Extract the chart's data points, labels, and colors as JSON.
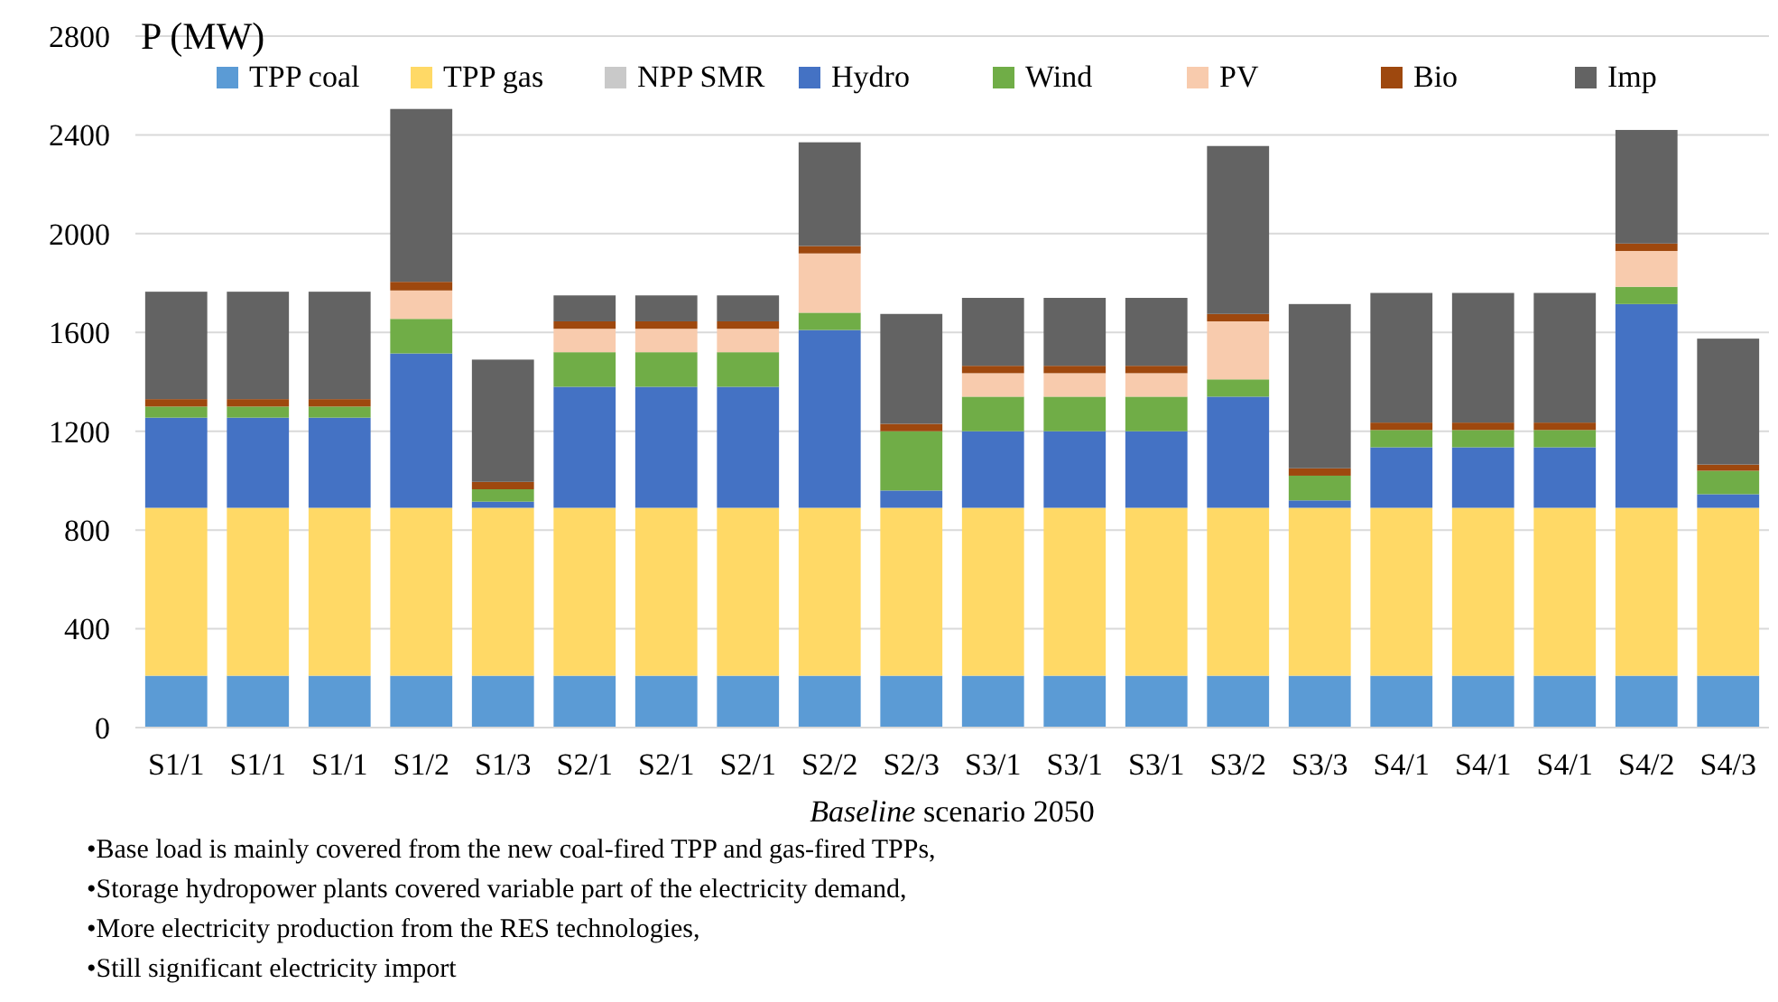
{
  "chart_data": {
    "type": "bar",
    "stacked": true,
    "ylabel": "P (MW)",
    "xlabel": "Baseline scenario 2050",
    "categories": [
      "S1/1",
      "S1/1",
      "S1/1",
      "S1/2",
      "S1/3",
      "S2/1",
      "S2/1",
      "S2/1",
      "S2/2",
      "S2/3",
      "S3/1",
      "S3/1",
      "S3/1",
      "S3/2",
      "S3/3",
      "S4/1",
      "S4/1",
      "S4/1",
      "S4/2",
      "S4/3"
    ],
    "series": [
      {
        "name": "TPP coal",
        "color": "#5b9bd5",
        "values": [
          210,
          210,
          210,
          210,
          210,
          210,
          210,
          210,
          210,
          210,
          210,
          210,
          210,
          210,
          210,
          210,
          210,
          210,
          210,
          210
        ]
      },
      {
        "name": "TPP gas",
        "color": "#ffd966",
        "values": [
          680,
          680,
          680,
          680,
          680,
          680,
          680,
          680,
          680,
          680,
          680,
          680,
          680,
          680,
          680,
          680,
          680,
          680,
          680,
          680
        ]
      },
      {
        "name": "NPP SMR",
        "color": "#c9c9c9",
        "values": [
          0,
          0,
          0,
          0,
          0,
          0,
          0,
          0,
          0,
          0,
          0,
          0,
          0,
          0,
          0,
          0,
          0,
          0,
          0,
          0
        ]
      },
      {
        "name": "Hydro",
        "color": "#4472c4",
        "values": [
          365,
          365,
          365,
          625,
          25,
          490,
          490,
          490,
          720,
          70,
          310,
          310,
          310,
          450,
          30,
          245,
          245,
          245,
          825,
          55
        ]
      },
      {
        "name": "Wind",
        "color": "#70ad47",
        "values": [
          45,
          45,
          45,
          140,
          50,
          140,
          140,
          140,
          70,
          240,
          140,
          140,
          140,
          70,
          100,
          70,
          70,
          70,
          70,
          95
        ]
      },
      {
        "name": "PV",
        "color": "#f8cbad",
        "values": [
          0,
          0,
          0,
          115,
          0,
          95,
          95,
          95,
          240,
          0,
          95,
          95,
          95,
          235,
          0,
          0,
          0,
          0,
          145,
          0
        ]
      },
      {
        "name": "Bio",
        "color": "#9e480e",
        "values": [
          30,
          30,
          30,
          35,
          30,
          30,
          30,
          30,
          30,
          30,
          30,
          30,
          30,
          30,
          30,
          30,
          30,
          30,
          30,
          25
        ]
      },
      {
        "name": "Imp",
        "color": "#636363",
        "values": [
          435,
          435,
          435,
          700,
          495,
          105,
          105,
          105,
          420,
          445,
          275,
          275,
          275,
          680,
          665,
          525,
          525,
          525,
          460,
          510
        ]
      }
    ],
    "ylim": [
      0,
      2800
    ],
    "yticks": [
      0,
      400,
      800,
      1200,
      1600,
      2000,
      2400,
      2800
    ],
    "grid": "y",
    "legend": "top",
    "annotations": [
      "•Base load is mainly covered from the new coal-fired TPP and gas-fired TPPs,",
      "•Storage hydropower plants covered variable part of the electricity demand,",
      "•More electricity production from the RES technologies,",
      "•Still significant electricity import"
    ]
  }
}
